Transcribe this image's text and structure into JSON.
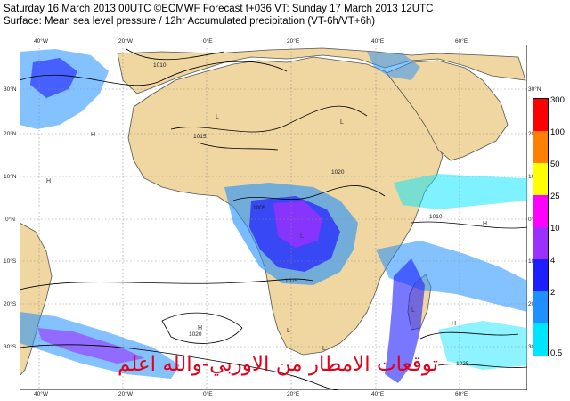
{
  "header": {
    "line1": "Saturday 16 March 2013 00UTC ©ECMWF Forecast t+036 VT: Sunday 17 March 2013 12UTC",
    "line2": "Surface: Mean sea level pressure / 12hr Accumulated precipitation (VT-6h/VT+6h)"
  },
  "axes": {
    "top_lon": [
      "40°W",
      "20°W",
      "0°E",
      "20°E",
      "40°E",
      "60°E"
    ],
    "bottom_lon": [
      "40°W",
      "20°W",
      "0°E",
      "20°E",
      "40°E",
      "60°E"
    ],
    "left_lat": [
      "30°N",
      "20°N",
      "10°N",
      "0°N",
      "10°S",
      "20°S",
      "30°S"
    ],
    "right_lat": [
      "30°N",
      "20°N",
      "10°N",
      "0°N",
      "10°S",
      "20°S",
      "30°S"
    ]
  },
  "isobars": [
    "1010",
    "1015",
    "1020",
    "1005",
    "1010",
    "1015",
    "1020",
    "1025"
  ],
  "pressure_centres": [
    "H",
    "L",
    "L",
    "H",
    "L",
    "H",
    "L",
    "L",
    "H",
    "H",
    "L"
  ],
  "legend": {
    "labels": [
      "300",
      "100",
      "50",
      "25",
      "10",
      "4",
      "2",
      "0.5"
    ],
    "colors": [
      "#ff0000",
      "#ff7f00",
      "#ffff00",
      "#ff00ff",
      "#9b30ff",
      "#1e1eff",
      "#1e90ff",
      "#00e5ff"
    ]
  },
  "land_color": "#f0d6a0",
  "ocean_color": "#ffffff",
  "overlay_text": "توقعات الامطار من الاوربي-والله اعلم"
}
